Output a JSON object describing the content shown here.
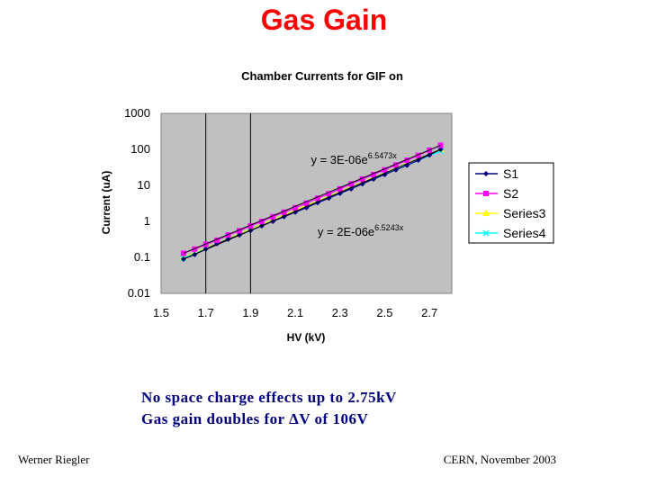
{
  "slide": {
    "title": "Gas Gain",
    "note_line1": "No space charge effects up to 2.75kV",
    "note_line2": "Gas gain doubles for ΔV of 106V",
    "footer_left": "Werner Riegler",
    "footer_right": "CERN, November 2003",
    "title_color": "#ff0000",
    "note_color": "#000080"
  },
  "chart_data": {
    "type": "scatter",
    "title": "Chamber Currents for GIF on",
    "xlabel": "HV (kV)",
    "ylabel": "Current (uA)",
    "xlim": [
      1.5,
      2.8
    ],
    "ylim": [
      0.01,
      1000
    ],
    "y_scale": "log",
    "x_ticks": [
      "1.5",
      "1.7",
      "1.9",
      "2.1",
      "2.3",
      "2.5",
      "2.7"
    ],
    "y_ticks": [
      "0.01",
      "0.1",
      "1",
      "10",
      "100",
      "1000"
    ],
    "vertical_lines_x": [
      1.7,
      1.9
    ],
    "plot_background": "#c0c0c0",
    "legend_position": "right",
    "annotations": [
      {
        "text": "y = 3E-06e",
        "exponent": "6.5473x",
        "x": 2.17,
        "y": 40
      },
      {
        "text": "y = 2E-06e",
        "exponent": "6.5243x",
        "x": 2.2,
        "y": 0.4
      }
    ],
    "series": [
      {
        "name": "S1",
        "color": "#000080",
        "marker": "diamond",
        "x": [
          1.6,
          1.65,
          1.7,
          1.75,
          1.8,
          1.85,
          1.9,
          1.95,
          2.0,
          2.05,
          2.1,
          2.15,
          2.2,
          2.25,
          2.3,
          2.35,
          2.4,
          2.45,
          2.5,
          2.55,
          2.6,
          2.65,
          2.7,
          2.75
        ],
        "y": [
          0.09,
          0.12,
          0.17,
          0.24,
          0.32,
          0.42,
          0.56,
          0.75,
          1.0,
          1.35,
          1.8,
          2.4,
          3.3,
          4.4,
          6.0,
          8.0,
          11,
          15,
          20,
          27,
          36,
          50,
          70,
          100
        ]
      },
      {
        "name": "S2",
        "color": "#ff00ff",
        "marker": "square",
        "x": [
          1.6,
          1.65,
          1.7,
          1.75,
          1.8,
          1.85,
          1.9,
          1.95,
          2.0,
          2.05,
          2.1,
          2.15,
          2.2,
          2.25,
          2.3,
          2.35,
          2.4,
          2.45,
          2.5,
          2.55,
          2.6,
          2.65,
          2.7,
          2.75
        ],
        "y": [
          0.13,
          0.17,
          0.23,
          0.3,
          0.42,
          0.55,
          0.75,
          1.0,
          1.35,
          1.8,
          2.4,
          3.2,
          4.4,
          5.9,
          8.0,
          11,
          15,
          20,
          27,
          37,
          50,
          68,
          95,
          130
        ]
      },
      {
        "name": "Series3",
        "color": "#ffff00",
        "marker": "triangle",
        "x": [
          1.6,
          2.75
        ],
        "y": [
          0.1,
          100
        ]
      },
      {
        "name": "Series4",
        "color": "#00ffff",
        "marker": "x",
        "x": [
          1.6,
          2.75
        ],
        "y": [
          0.095,
          90
        ]
      }
    ]
  }
}
